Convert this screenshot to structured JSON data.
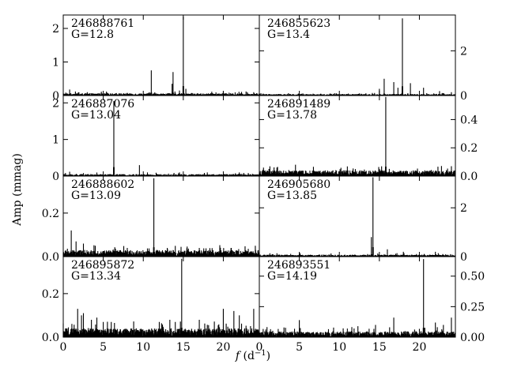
{
  "chart_data": {
    "type": "line",
    "ylabel": "Amp (mmag)",
    "xlabel_main": "f",
    "xlabel_unit": " (d",
    "xlabel_exp": "−1",
    "xlabel_close": ")",
    "xlim": [
      0,
      24.5
    ],
    "x_ticks": [
      0,
      5,
      10,
      15,
      20
    ],
    "x_tick_labels": [
      "0",
      "5",
      "10",
      "15",
      "20"
    ],
    "line_color": "#000000",
    "panels": [
      {
        "id": "246888761",
        "mag": "G=12.8",
        "col": 0,
        "row": 0,
        "ylim": [
          0,
          2.4
        ],
        "yticks": [
          0,
          1,
          2
        ],
        "ytick_labels": [
          "0",
          "1",
          "2"
        ],
        "noise": 0.05,
        "peaks": [
          [
            0.8,
            0.18
          ],
          [
            1.5,
            0.12
          ],
          [
            3.0,
            0.1
          ],
          [
            5.5,
            0.08
          ],
          [
            8.0,
            0.08
          ],
          [
            11.0,
            0.75
          ],
          [
            13.6,
            0.35
          ],
          [
            13.7,
            0.7
          ],
          [
            14.5,
            0.15
          ],
          [
            15.0,
            2.35
          ],
          [
            15.3,
            0.2
          ],
          [
            20.0,
            0.12
          ],
          [
            23.0,
            0.1
          ]
        ]
      },
      {
        "id": "246887076",
        "mag": "G=13.04",
        "col": 0,
        "row": 1,
        "ylim": [
          0,
          2.2
        ],
        "yticks": [
          0,
          1,
          2
        ],
        "ytick_labels": [
          "0",
          "1",
          "2"
        ],
        "noise": 0.04,
        "peaks": [
          [
            0.8,
            0.12
          ],
          [
            2.5,
            0.08
          ],
          [
            6.3,
            2.05
          ],
          [
            9.5,
            0.3
          ],
          [
            10.5,
            0.1
          ],
          [
            14.5,
            0.1
          ],
          [
            18.0,
            0.1
          ],
          [
            22.0,
            0.1
          ]
        ]
      },
      {
        "id": "246888602",
        "mag": "G=13.09",
        "col": 0,
        "row": 2,
        "ylim": [
          0,
          0.37
        ],
        "yticks": [
          0.0,
          0.2
        ],
        "ytick_labels": [
          "0.0",
          "0.2"
        ],
        "noise": 0.022,
        "peaks": [
          [
            1.0,
            0.12
          ],
          [
            1.6,
            0.07
          ],
          [
            2.5,
            0.06
          ],
          [
            4.0,
            0.05
          ],
          [
            8.0,
            0.04
          ],
          [
            11.3,
            0.36
          ],
          [
            13.0,
            0.04
          ],
          [
            17.0,
            0.04
          ],
          [
            21.0,
            0.04
          ],
          [
            24.0,
            0.05
          ]
        ]
      },
      {
        "id": "246895872",
        "mag": "G=13.34",
        "col": 0,
        "row": 3,
        "ylim": [
          0,
          0.37
        ],
        "yticks": [
          0.0,
          0.2
        ],
        "ytick_labels": [
          "0.0",
          "0.2"
        ],
        "noise": 0.03,
        "peaks": [
          [
            1.8,
            0.13
          ],
          [
            2.3,
            0.1
          ],
          [
            2.5,
            0.11
          ],
          [
            3.5,
            0.08
          ],
          [
            4.2,
            0.09
          ],
          [
            6.0,
            0.07
          ],
          [
            12.0,
            0.07
          ],
          [
            13.3,
            0.08
          ],
          [
            14.0,
            0.07
          ],
          [
            14.8,
            0.36
          ],
          [
            17.0,
            0.08
          ],
          [
            20.0,
            0.13
          ],
          [
            21.3,
            0.12
          ],
          [
            22.0,
            0.1
          ],
          [
            23.8,
            0.13
          ]
        ]
      },
      {
        "id": "246855623",
        "mag": "G=13.4",
        "col": 1,
        "row": 0,
        "ylim": [
          0,
          3.6
        ],
        "yticks": [
          0,
          2
        ],
        "ytick_labels": [
          "0",
          "2"
        ],
        "noise": 0.05,
        "peaks": [
          [
            15.0,
            0.3
          ],
          [
            15.6,
            0.75
          ],
          [
            16.8,
            0.6
          ],
          [
            17.3,
            0.35
          ],
          [
            17.9,
            3.45
          ],
          [
            18.9,
            0.55
          ],
          [
            20.5,
            0.35
          ],
          [
            22.5,
            0.2
          ],
          [
            24.0,
            0.15
          ]
        ]
      },
      {
        "id": "246891489",
        "mag": "G=13.78",
        "col": 1,
        "row": 1,
        "ylim": [
          0,
          0.57
        ],
        "yticks": [
          0.0,
          0.2,
          0.4
        ],
        "ytick_labels": [
          "0.0",
          "0.2",
          "0.4"
        ],
        "noise": 0.03,
        "peaks": [
          [
            0.5,
            0.06
          ],
          [
            1.2,
            0.05
          ],
          [
            2.2,
            0.06
          ],
          [
            4.5,
            0.08
          ],
          [
            15.8,
            0.56
          ],
          [
            24.0,
            0.07
          ]
        ]
      },
      {
        "id": "246905680",
        "mag": "G=13.85",
        "col": 1,
        "row": 2,
        "ylim": [
          0,
          3.3
        ],
        "yticks": [
          0,
          2
        ],
        "ytick_labels": [
          "0",
          "2"
        ],
        "noise": 0.06,
        "peaks": [
          [
            14.2,
            3.25
          ],
          [
            14.0,
            0.8
          ],
          [
            16.0,
            0.3
          ],
          [
            18.0,
            0.2
          ],
          [
            22.0,
            0.2
          ]
        ]
      },
      {
        "id": "246893551",
        "mag": "G=14.19",
        "col": 1,
        "row": 3,
        "ylim": [
          0,
          0.66
        ],
        "yticks": [
          0.0,
          0.25,
          0.5
        ],
        "ytick_labels": [
          "0.00",
          "0.25",
          "0.50"
        ],
        "noise": 0.035,
        "peaks": [
          [
            5.0,
            0.14
          ],
          [
            12.3,
            0.09
          ],
          [
            14.5,
            0.1
          ],
          [
            16.8,
            0.16
          ],
          [
            20.5,
            0.64
          ],
          [
            22.0,
            0.12
          ],
          [
            23.0,
            0.1
          ],
          [
            24.0,
            0.16
          ]
        ]
      }
    ]
  }
}
